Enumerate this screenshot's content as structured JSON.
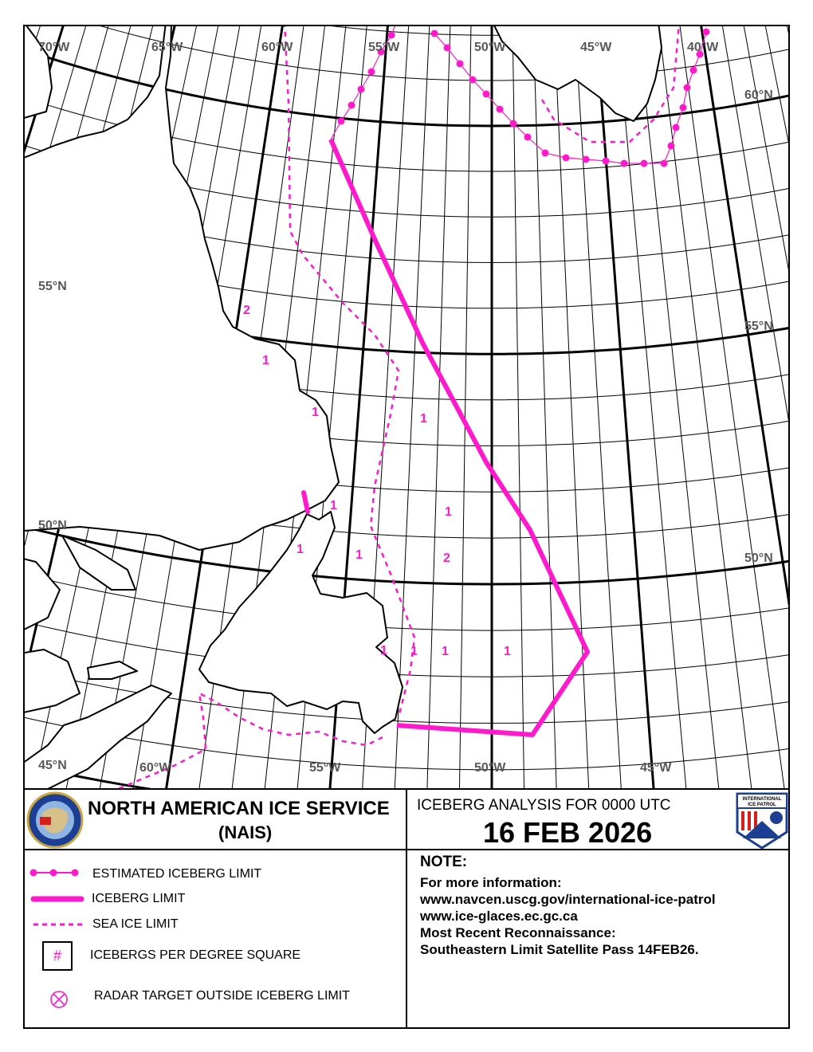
{
  "map": {
    "top_longitude_labels": [
      "70°W",
      "65°W",
      "60°W",
      "55°W",
      "50°W",
      "45°W",
      "40°W"
    ],
    "bottom_longitude_labels": [
      "60°W",
      "55°W",
      "50°W",
      "45°W"
    ],
    "left_latitude_labels": [
      "55°N",
      "50°N",
      "45°N"
    ],
    "right_latitude_labels": [
      "60°N",
      "55°N",
      "50°N"
    ],
    "iceberg_counts": [
      "2",
      "1",
      "1",
      "1",
      "1",
      "1",
      "1",
      "1",
      "2",
      "1",
      "1",
      "1",
      "1"
    ],
    "colors": {
      "limit": "#ff19cc",
      "label": "#585858",
      "coast": "#000000"
    }
  },
  "header": {
    "org_name": "NORTH AMERICAN ICE SERVICE",
    "org_abbr": "(NAIS)",
    "analysis_label": "ICEBERG ANALYSIS FOR 0000 UTC",
    "date": "16 FEB 2026",
    "patrol_logo_text": "INTERNATIONAL ICE PATROL"
  },
  "legend": {
    "estimated_limit": "ESTIMATED ICEBERG LIMIT",
    "iceberg_limit": "ICEBERG LIMIT",
    "sea_ice_limit": "SEA ICE LIMIT",
    "per_square_symbol": "#",
    "per_square": "ICEBERGS PER DEGREE SQUARE",
    "radar_target": "RADAR TARGET OUTSIDE ICEBERG LIMIT"
  },
  "note": {
    "heading": "NOTE:",
    "lines": [
      "For more information:",
      "www.navcen.uscg.gov/international-ice-patrol",
      "www.ice-glaces.ec.gc.ca",
      "Most Recent Reconnaissance:",
      "Southeastern Limit Satellite Pass 14FEB26."
    ]
  }
}
